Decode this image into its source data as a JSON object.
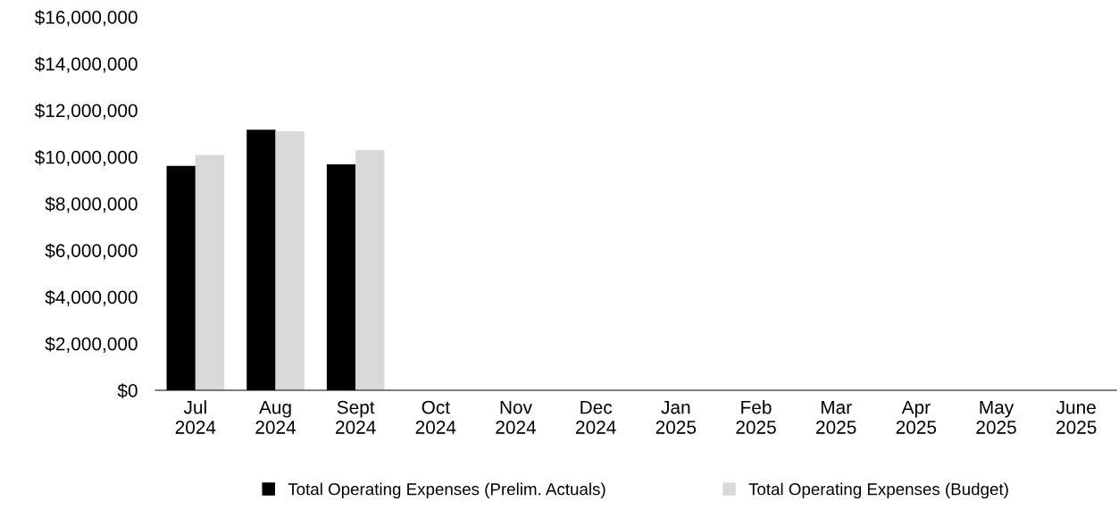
{
  "chart_data": {
    "type": "bar",
    "categories": [
      "Jul\n2024",
      "Aug\n2024",
      "Sept\n2024",
      "Oct\n2024",
      "Nov\n2024",
      "Dec\n2024",
      "Jan\n2025",
      "Feb\n2025",
      "Mar\n2025",
      "Apr\n2025",
      "May\n2025",
      "June\n2025"
    ],
    "series": [
      {
        "name": "Total Operating Expenses (Prelim. Actuals)",
        "color": "#000000",
        "values": [
          9620000,
          11170000,
          9680000,
          null,
          null,
          null,
          null,
          null,
          null,
          null,
          null,
          null
        ]
      },
      {
        "name": "Total Operating Expenses (Budget)",
        "color": "#d9d9d9",
        "values": [
          10090000,
          11100000,
          10300000,
          null,
          null,
          null,
          null,
          null,
          null,
          null,
          null,
          null
        ]
      }
    ],
    "ylim": [
      0,
      16000000
    ],
    "yticks": [
      {
        "value": 0,
        "label": "$0"
      },
      {
        "value": 2000000,
        "label": "$2,000,000"
      },
      {
        "value": 4000000,
        "label": "$4,000,000"
      },
      {
        "value": 6000000,
        "label": "$6,000,000"
      },
      {
        "value": 8000000,
        "label": "$8,000,000"
      },
      {
        "value": 10000000,
        "label": "$10,000,000"
      },
      {
        "value": 12000000,
        "label": "$12,000,000"
      },
      {
        "value": 14000000,
        "label": "$14,000,000"
      },
      {
        "value": 16000000,
        "label": "$16,000,000"
      }
    ],
    "grid": false,
    "legend": "bottom"
  }
}
